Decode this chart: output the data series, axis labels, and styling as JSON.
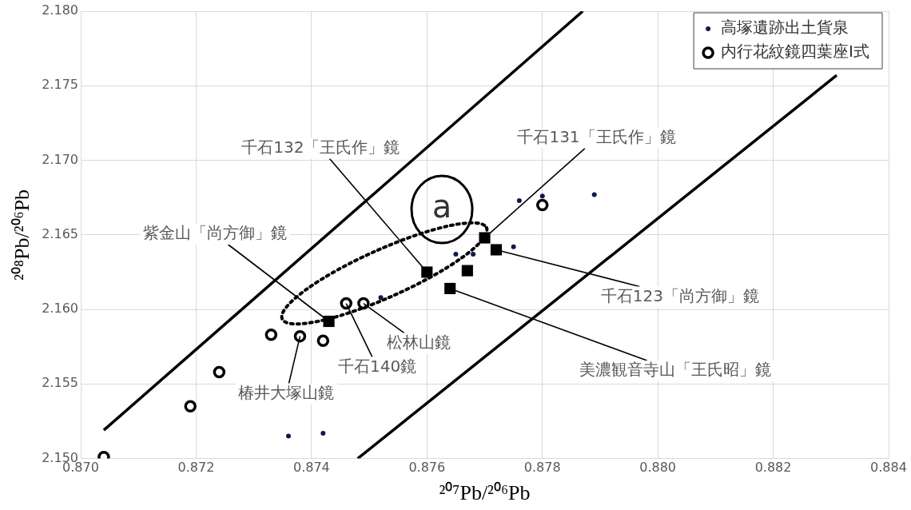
{
  "chart_data": {
    "type": "scatter",
    "xlabel": "²⁰⁷Pb/²⁰⁶Pb",
    "ylabel": "²⁰⁸Pb/²⁰⁶Pb",
    "xlim": [
      0.87,
      0.884
    ],
    "xticks": [
      {
        "value": 0.87,
        "label": "0.870"
      },
      {
        "value": 0.872,
        "label": "0.872"
      },
      {
        "value": 0.874,
        "label": "0.874"
      },
      {
        "value": 0.876,
        "label": "0.876"
      },
      {
        "value": 0.878,
        "label": "0.878"
      },
      {
        "value": 0.88,
        "label": "0.880"
      },
      {
        "value": 0.882,
        "label": "0.882"
      },
      {
        "value": 0.884,
        "label": "0.884"
      }
    ],
    "ylim": [
      2.15,
      2.18
    ],
    "yticks": [
      {
        "value": 2.15,
        "label": "2.150"
      },
      {
        "value": 2.155,
        "label": "2.155"
      },
      {
        "value": 2.16,
        "label": "2.160"
      },
      {
        "value": 2.165,
        "label": "2.165"
      },
      {
        "value": 2.17,
        "label": "2.170"
      },
      {
        "value": 2.175,
        "label": "2.175"
      },
      {
        "value": 2.18,
        "label": "2.180"
      }
    ],
    "grid": true,
    "legend": "top right",
    "series": [
      {
        "name": "高塚遺跡出土貨泉",
        "color": "#0d1b4c",
        "marker": "circle",
        "x": [
          0.8736,
          0.8742,
          0.8752,
          0.8765,
          0.8768,
          0.8775,
          0.8776,
          0.878,
          0.8789
        ],
        "values": [
          2.1515,
          2.1517,
          2.1608,
          2.1637,
          2.1637,
          2.1642,
          2.1673,
          2.1676,
          2.1677
        ]
      },
      {
        "name": "内行花紋鏡四葉座Ⅰ式",
        "color": "#000000",
        "marker": "circle",
        "x": [
          0.8704,
          0.8719,
          0.8724,
          0.8733,
          0.8738,
          0.8742,
          0.8746,
          0.8749,
          0.878
        ],
        "values": [
          2.1501,
          2.1535,
          2.1558,
          2.1583,
          2.1582,
          2.1579,
          2.1604,
          2.1604,
          2.167
        ]
      },
      {
        "color": "#000000",
        "marker": "square",
        "x": [
          0.8743,
          0.876,
          0.8764,
          0.8767,
          0.877,
          0.8772
        ],
        "values": [
          2.1592,
          2.1625,
          2.1614,
          2.1626,
          2.1648,
          2.164
        ]
      },
      {
        "type": "line",
        "color": "#000000",
        "marker": "none",
        "line_style": "solid",
        "x": [
          0.8704,
          0.8787
        ],
        "values": [
          2.1519,
          2.18
        ]
      },
      {
        "type": "line",
        "color": "#000000",
        "marker": "none",
        "line_style": "solid",
        "x": [
          0.8748,
          0.8831
        ],
        "values": [
          2.15,
          2.1757
        ]
      }
    ],
    "annotations": [
      {
        "text": "千石132「王氏作」鏡",
        "x": 0.876,
        "y": 2.1625
      },
      {
        "text": "千石131「王氏作」鏡",
        "x": 0.877,
        "y": 2.1648
      },
      {
        "text": "紫金山「尚方御」鏡",
        "x": 0.8743,
        "y": 2.1592
      },
      {
        "text": "千石123「尚方御」鏡",
        "x": 0.8772,
        "y": 2.164
      },
      {
        "text": "美濃観音寺山「王氏昭」鏡",
        "x": 0.8764,
        "y": 2.1614
      },
      {
        "text": "千石140鏡",
        "x": 0.8746,
        "y": 2.1604
      },
      {
        "text": "松林山鏡",
        "x": 0.8749,
        "y": 2.1604
      },
      {
        "text": "椿井大塚山鏡",
        "x": 0.8738,
        "y": 2.1582
      },
      "a"
    ]
  }
}
